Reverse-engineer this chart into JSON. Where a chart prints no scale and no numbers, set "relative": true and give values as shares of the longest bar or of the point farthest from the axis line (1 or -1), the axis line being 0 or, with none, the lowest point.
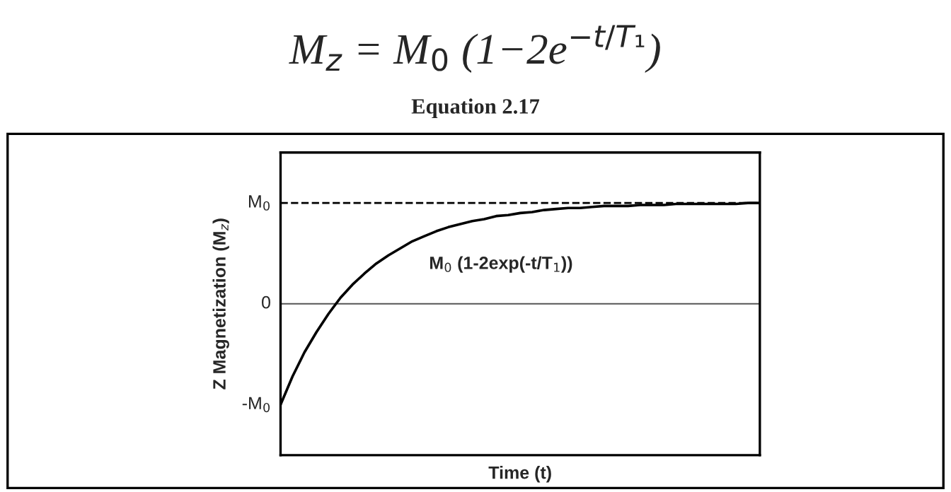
{
  "chart_data": {
    "type": "line",
    "title": "M$_{z}$ = M$_{0}$ (1−2e$^{−t/T₁}$)",
    "subtitle": "Equation 2.17",
    "xlabel": "Time (t)",
    "ylabel": "Z Magnetization (M$_{z}$)",
    "categories": [
      null,
      null,
      null,
      null,
      null,
      null,
      null,
      null,
      null,
      null,
      null,
      null,
      null,
      null,
      null,
      null,
      null,
      null,
      null,
      null,
      null,
      null,
      null,
      null,
      null,
      null,
      null,
      null,
      null,
      null,
      null,
      null,
      null,
      null,
      null,
      null,
      null,
      null,
      null,
      null,
      null
    ],
    "series": [
      {
        "name": "M$_{0}$ (1-2exp(-t/T$_{1}$))",
        "color": "#000000",
        "values": [
          -1,
          -0.72,
          -0.48,
          -0.28,
          -0.1,
          0.06,
          0.19,
          0.3,
          0.4,
          0.48,
          0.55,
          0.62,
          0.67,
          0.72,
          0.76,
          0.79,
          0.82,
          0.84,
          0.87,
          0.88,
          0.9,
          0.91,
          0.93,
          0.94,
          0.95,
          0.95,
          0.96,
          0.97,
          0.97,
          0.97,
          0.98,
          0.98,
          0.98,
          0.99,
          0.99,
          0.99,
          0.99,
          0.99,
          0.99,
          1.0,
          1.0
        ]
      }
    ],
    "relative": true,
    "annotations": [
      "-M$_{0}$"
    ],
    "ref_lines": [
      {
        "axis": "y",
        "value": 1,
        "label": "M$_{0}$",
        "color": "#000000",
        "line_style": "dashed"
      },
      {
        "axis": "y",
        "value": 0,
        "label": "0",
        "color": "#555555",
        "line_style": "solid"
      }
    ],
    "grid": false,
    "legend": false,
    "marker": "none",
    "line_style": "solid"
  }
}
